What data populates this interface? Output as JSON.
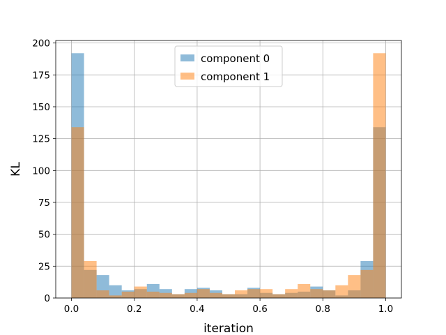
{
  "chart_data": {
    "type": "bar",
    "subtype": "overlapping-histogram",
    "title": "",
    "xlabel": "iteration",
    "ylabel": "KL",
    "xlim": [
      -0.05,
      1.05
    ],
    "ylim": [
      0,
      202
    ],
    "xticks": [
      0.0,
      0.2,
      0.4,
      0.6,
      0.8,
      1.0
    ],
    "xtick_labels": [
      "0.0",
      "0.2",
      "0.4",
      "0.6",
      "0.8",
      "1.0"
    ],
    "yticks": [
      0,
      25,
      50,
      75,
      100,
      125,
      150,
      175,
      200
    ],
    "ytick_labels": [
      "0",
      "25",
      "50",
      "75",
      "100",
      "125",
      "150",
      "175",
      "200"
    ],
    "grid": true,
    "legend_position": "upper center",
    "bins": 25,
    "bin_range": [
      0,
      1
    ],
    "opacity": 0.5,
    "series": [
      {
        "name": "component 0",
        "color": "#1f77b4",
        "values": [
          192,
          22,
          18,
          10,
          6,
          7,
          11,
          7,
          3,
          7,
          8,
          6,
          3,
          3,
          8,
          4,
          3,
          4,
          5,
          9,
          6,
          2,
          6,
          29,
          134
        ]
      },
      {
        "name": "component 1",
        "color": "#ff7f0e",
        "values": [
          134,
          29,
          6,
          2,
          5,
          9,
          5,
          4,
          3,
          4,
          7,
          4,
          3,
          6,
          7,
          7,
          3,
          7,
          11,
          7,
          6,
          10,
          18,
          22,
          192
        ]
      }
    ]
  }
}
